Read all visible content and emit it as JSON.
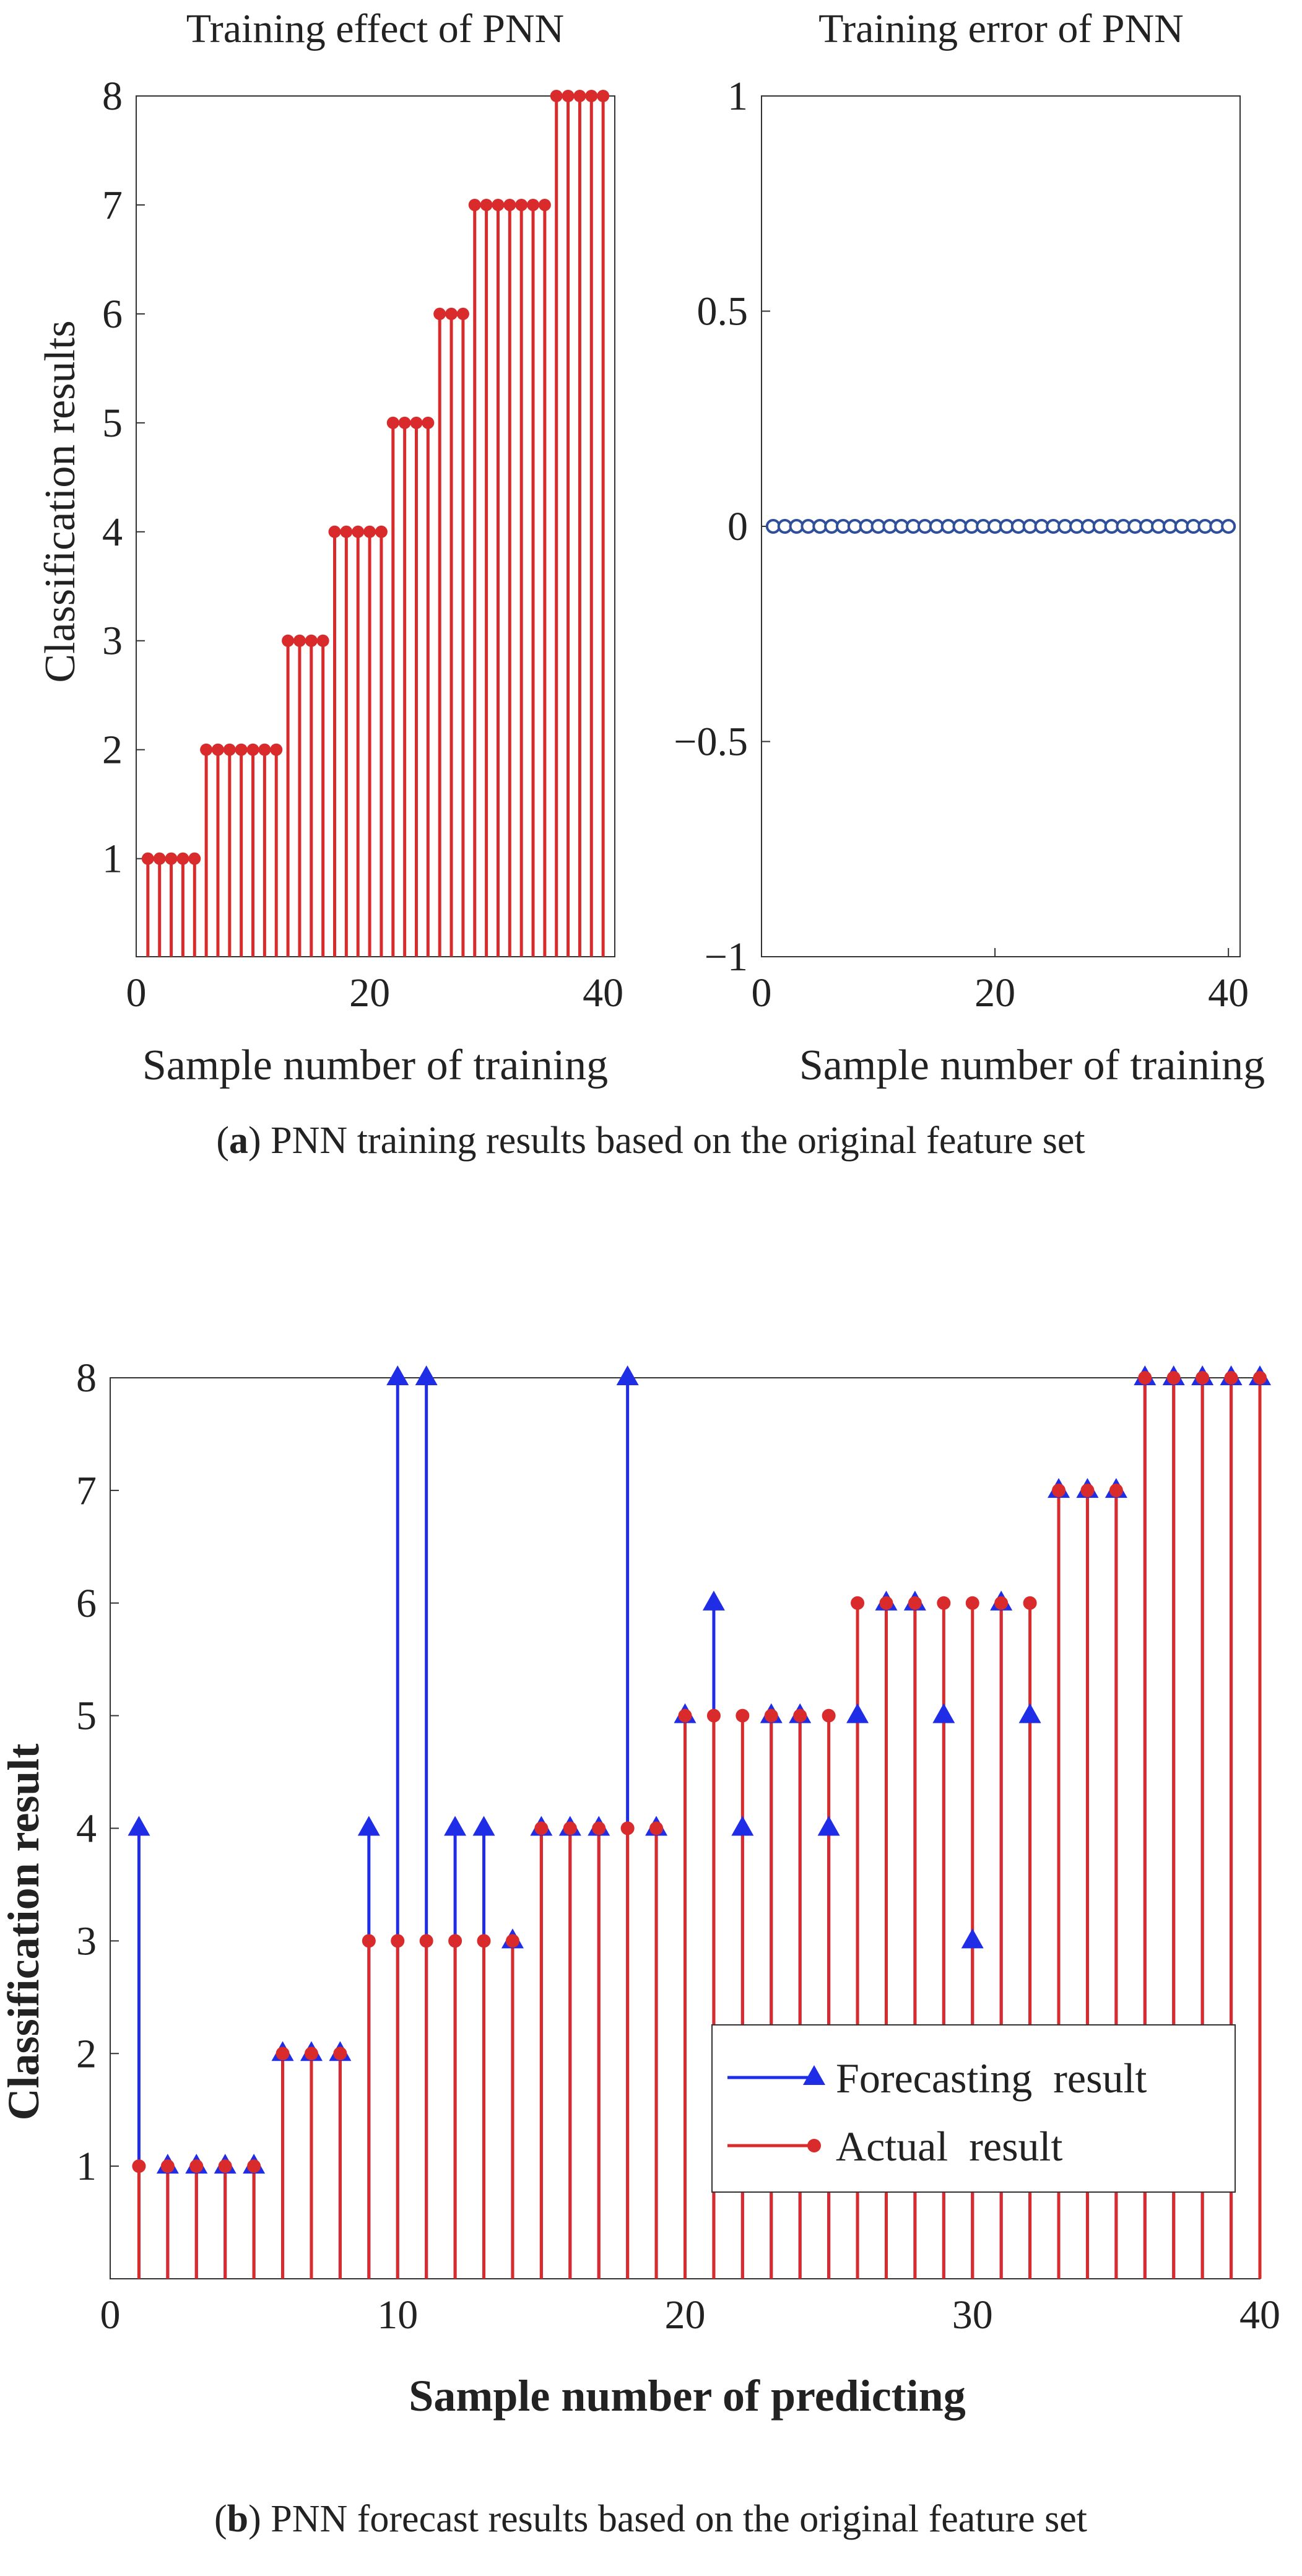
{
  "figure_a": {
    "caption_letter": "a",
    "caption_text": " PNN training results based on the original feature set"
  },
  "figure_b": {
    "caption_letter": "b",
    "caption_text": " PNN forecast results based on the original feature set"
  },
  "colors": {
    "red": "#d92b2b",
    "blue": "#1f2ee6",
    "navy": "#2f4f9a",
    "axis": "#333333"
  },
  "chart_data": [
    {
      "id": "a1",
      "type": "scatter",
      "title": "Training effect of PNN",
      "xlabel": "Sample number of training",
      "ylabel": "Classification results",
      "xlim": [
        0,
        41
      ],
      "ylim": [
        0.1,
        8
      ],
      "xticks": [
        "0",
        "20",
        "40"
      ],
      "yticks": [
        "1",
        "2",
        "3",
        "4",
        "5",
        "6",
        "7",
        "8"
      ],
      "series": [
        {
          "style": "stem",
          "x": [
            1,
            2,
            3,
            4,
            5,
            6,
            7,
            8,
            9,
            10,
            11,
            12,
            13,
            14,
            15,
            16,
            17,
            18,
            19,
            20,
            21,
            22,
            23,
            24,
            25,
            26,
            27,
            28,
            29,
            30,
            31,
            32,
            33,
            34,
            35,
            36,
            37,
            38,
            39,
            40
          ],
          "values": [
            1,
            1,
            1,
            1,
            1,
            2,
            2,
            2,
            2,
            2,
            2,
            2,
            3,
            3,
            3,
            3,
            4,
            4,
            4,
            4,
            4,
            5,
            5,
            5,
            5,
            6,
            6,
            6,
            7,
            7,
            7,
            7,
            7,
            7,
            7,
            8,
            8,
            8,
            8,
            8
          ]
        }
      ]
    },
    {
      "id": "a2",
      "type": "scatter",
      "title": "Training error of PNN",
      "xlabel": "Sample number of training",
      "ylabel": "",
      "xlim": [
        0,
        41
      ],
      "ylim": [
        -1,
        1
      ],
      "xticks": [
        "0",
        "20",
        "40"
      ],
      "yticks": [
        "1",
        "0.5",
        "0",
        "−0.5",
        "−1"
      ],
      "series": [
        {
          "style": "circles",
          "x": [
            1,
            2,
            3,
            4,
            5,
            6,
            7,
            8,
            9,
            10,
            11,
            12,
            13,
            14,
            15,
            16,
            17,
            18,
            19,
            20,
            21,
            22,
            23,
            24,
            25,
            26,
            27,
            28,
            29,
            30,
            31,
            32,
            33,
            34,
            35,
            36,
            37,
            38,
            39,
            40
          ],
          "values": [
            0,
            0,
            0,
            0,
            0,
            0,
            0,
            0,
            0,
            0,
            0,
            0,
            0,
            0,
            0,
            0,
            0,
            0,
            0,
            0,
            0,
            0,
            0,
            0,
            0,
            0,
            0,
            0,
            0,
            0,
            0,
            0,
            0,
            0,
            0,
            0,
            0,
            0,
            0,
            0
          ]
        }
      ]
    },
    {
      "id": "b",
      "type": "scatter",
      "title": "",
      "xlabel": "Sample number of predicting",
      "ylabel": "Classification result",
      "xlim": [
        0,
        40
      ],
      "ylim": [
        0,
        8
      ],
      "xticks": [
        "0",
        "10",
        "20",
        "30",
        "40"
      ],
      "yticks": [
        "1",
        "2",
        "3",
        "4",
        "5",
        "6",
        "7",
        "8"
      ],
      "legend": "bottom-right",
      "series": [
        {
          "name": "Forecasting  result",
          "style": "stem-triangle",
          "x": [
            1,
            2,
            3,
            4,
            5,
            6,
            7,
            8,
            9,
            10,
            11,
            12,
            13,
            14,
            15,
            16,
            17,
            18,
            19,
            20,
            21,
            22,
            23,
            24,
            25,
            26,
            27,
            28,
            29,
            30,
            31,
            32,
            33,
            34,
            35,
            36,
            37,
            38,
            39,
            40
          ],
          "values": [
            4,
            1,
            1,
            1,
            1,
            2,
            2,
            2,
            4,
            8,
            8,
            4,
            4,
            3,
            4,
            4,
            4,
            8,
            4,
            5,
            6,
            4,
            5,
            5,
            4,
            5,
            6,
            6,
            5,
            3,
            6,
            5,
            7,
            7,
            7,
            8,
            8,
            8,
            8,
            8
          ]
        },
        {
          "name": "Actual  result",
          "style": "stem-dot",
          "x": [
            1,
            2,
            3,
            4,
            5,
            6,
            7,
            8,
            9,
            10,
            11,
            12,
            13,
            14,
            15,
            16,
            17,
            18,
            19,
            20,
            21,
            22,
            23,
            24,
            25,
            26,
            27,
            28,
            29,
            30,
            31,
            32,
            33,
            34,
            35,
            36,
            37,
            38,
            39,
            40
          ],
          "values": [
            1,
            1,
            1,
            1,
            1,
            2,
            2,
            2,
            3,
            3,
            3,
            3,
            3,
            3,
            4,
            4,
            4,
            4,
            4,
            5,
            5,
            5,
            5,
            5,
            5,
            6,
            6,
            6,
            6,
            6,
            6,
            6,
            7,
            7,
            7,
            8,
            8,
            8,
            8,
            8
          ]
        }
      ]
    }
  ]
}
